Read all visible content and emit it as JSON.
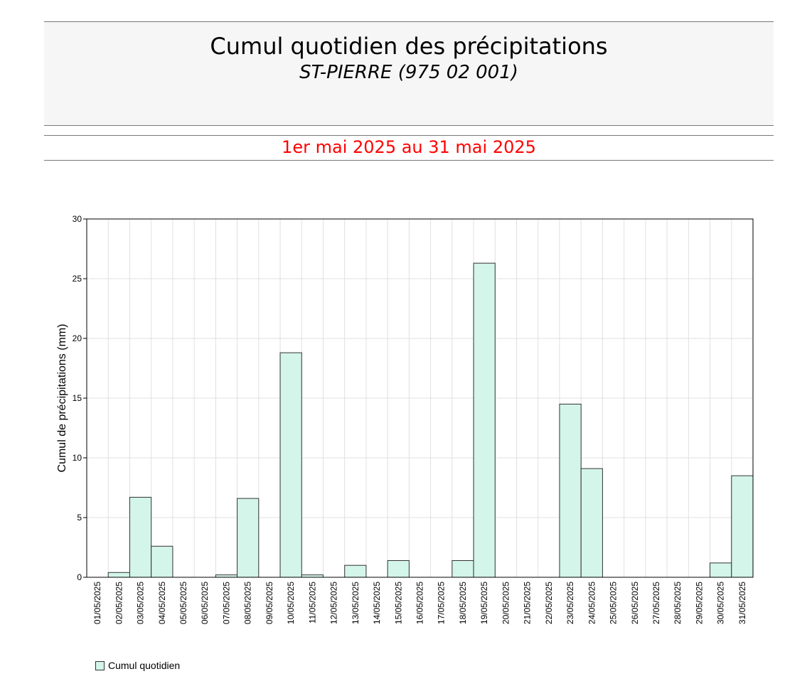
{
  "header": {
    "title": "Cumul quotidien des précipitations",
    "station": "ST-PIERRE (975 02 001)",
    "period": "1er mai 2025 au 31 mai 2025"
  },
  "legend": {
    "label": "Cumul quotidien"
  },
  "colors": {
    "bar_fill": "#d4f5e9",
    "bar_stroke": "#333333",
    "grid": "#e0e0e0",
    "period_text": "#ff0000",
    "header_bg": "#f6f6f6"
  },
  "chart_data": {
    "type": "bar",
    "title": "Cumul quotidien des précipitations",
    "subtitle": "ST-PIERRE (975 02 001)",
    "xlabel": "",
    "ylabel": "Cumul de précipitations (mm)",
    "ylim": [
      0,
      30
    ],
    "yticks": [
      0,
      5,
      10,
      15,
      20,
      25,
      30
    ],
    "grid": true,
    "legend_position": "bottom-left",
    "categories": [
      "01/05/2025",
      "02/05/2025",
      "03/05/2025",
      "04/05/2025",
      "05/05/2025",
      "06/05/2025",
      "07/05/2025",
      "08/05/2025",
      "09/05/2025",
      "10/05/2025",
      "11/05/2025",
      "12/05/2025",
      "13/05/2025",
      "14/05/2025",
      "15/05/2025",
      "16/05/2025",
      "17/05/2025",
      "18/05/2025",
      "19/05/2025",
      "20/05/2025",
      "21/05/2025",
      "22/05/2025",
      "23/05/2025",
      "24/05/2025",
      "25/05/2025",
      "26/05/2025",
      "27/05/2025",
      "28/05/2025",
      "29/05/2025",
      "30/05/2025",
      "31/05/2025"
    ],
    "series": [
      {
        "name": "Cumul quotidien",
        "values": [
          0,
          0.4,
          6.7,
          2.6,
          0,
          0,
          0.2,
          6.6,
          0,
          18.8,
          0.2,
          0,
          1.0,
          0,
          1.4,
          0,
          0,
          1.4,
          26.3,
          0,
          0,
          0,
          14.5,
          9.1,
          0,
          0,
          0,
          0,
          0,
          1.2,
          8.5
        ]
      }
    ]
  }
}
